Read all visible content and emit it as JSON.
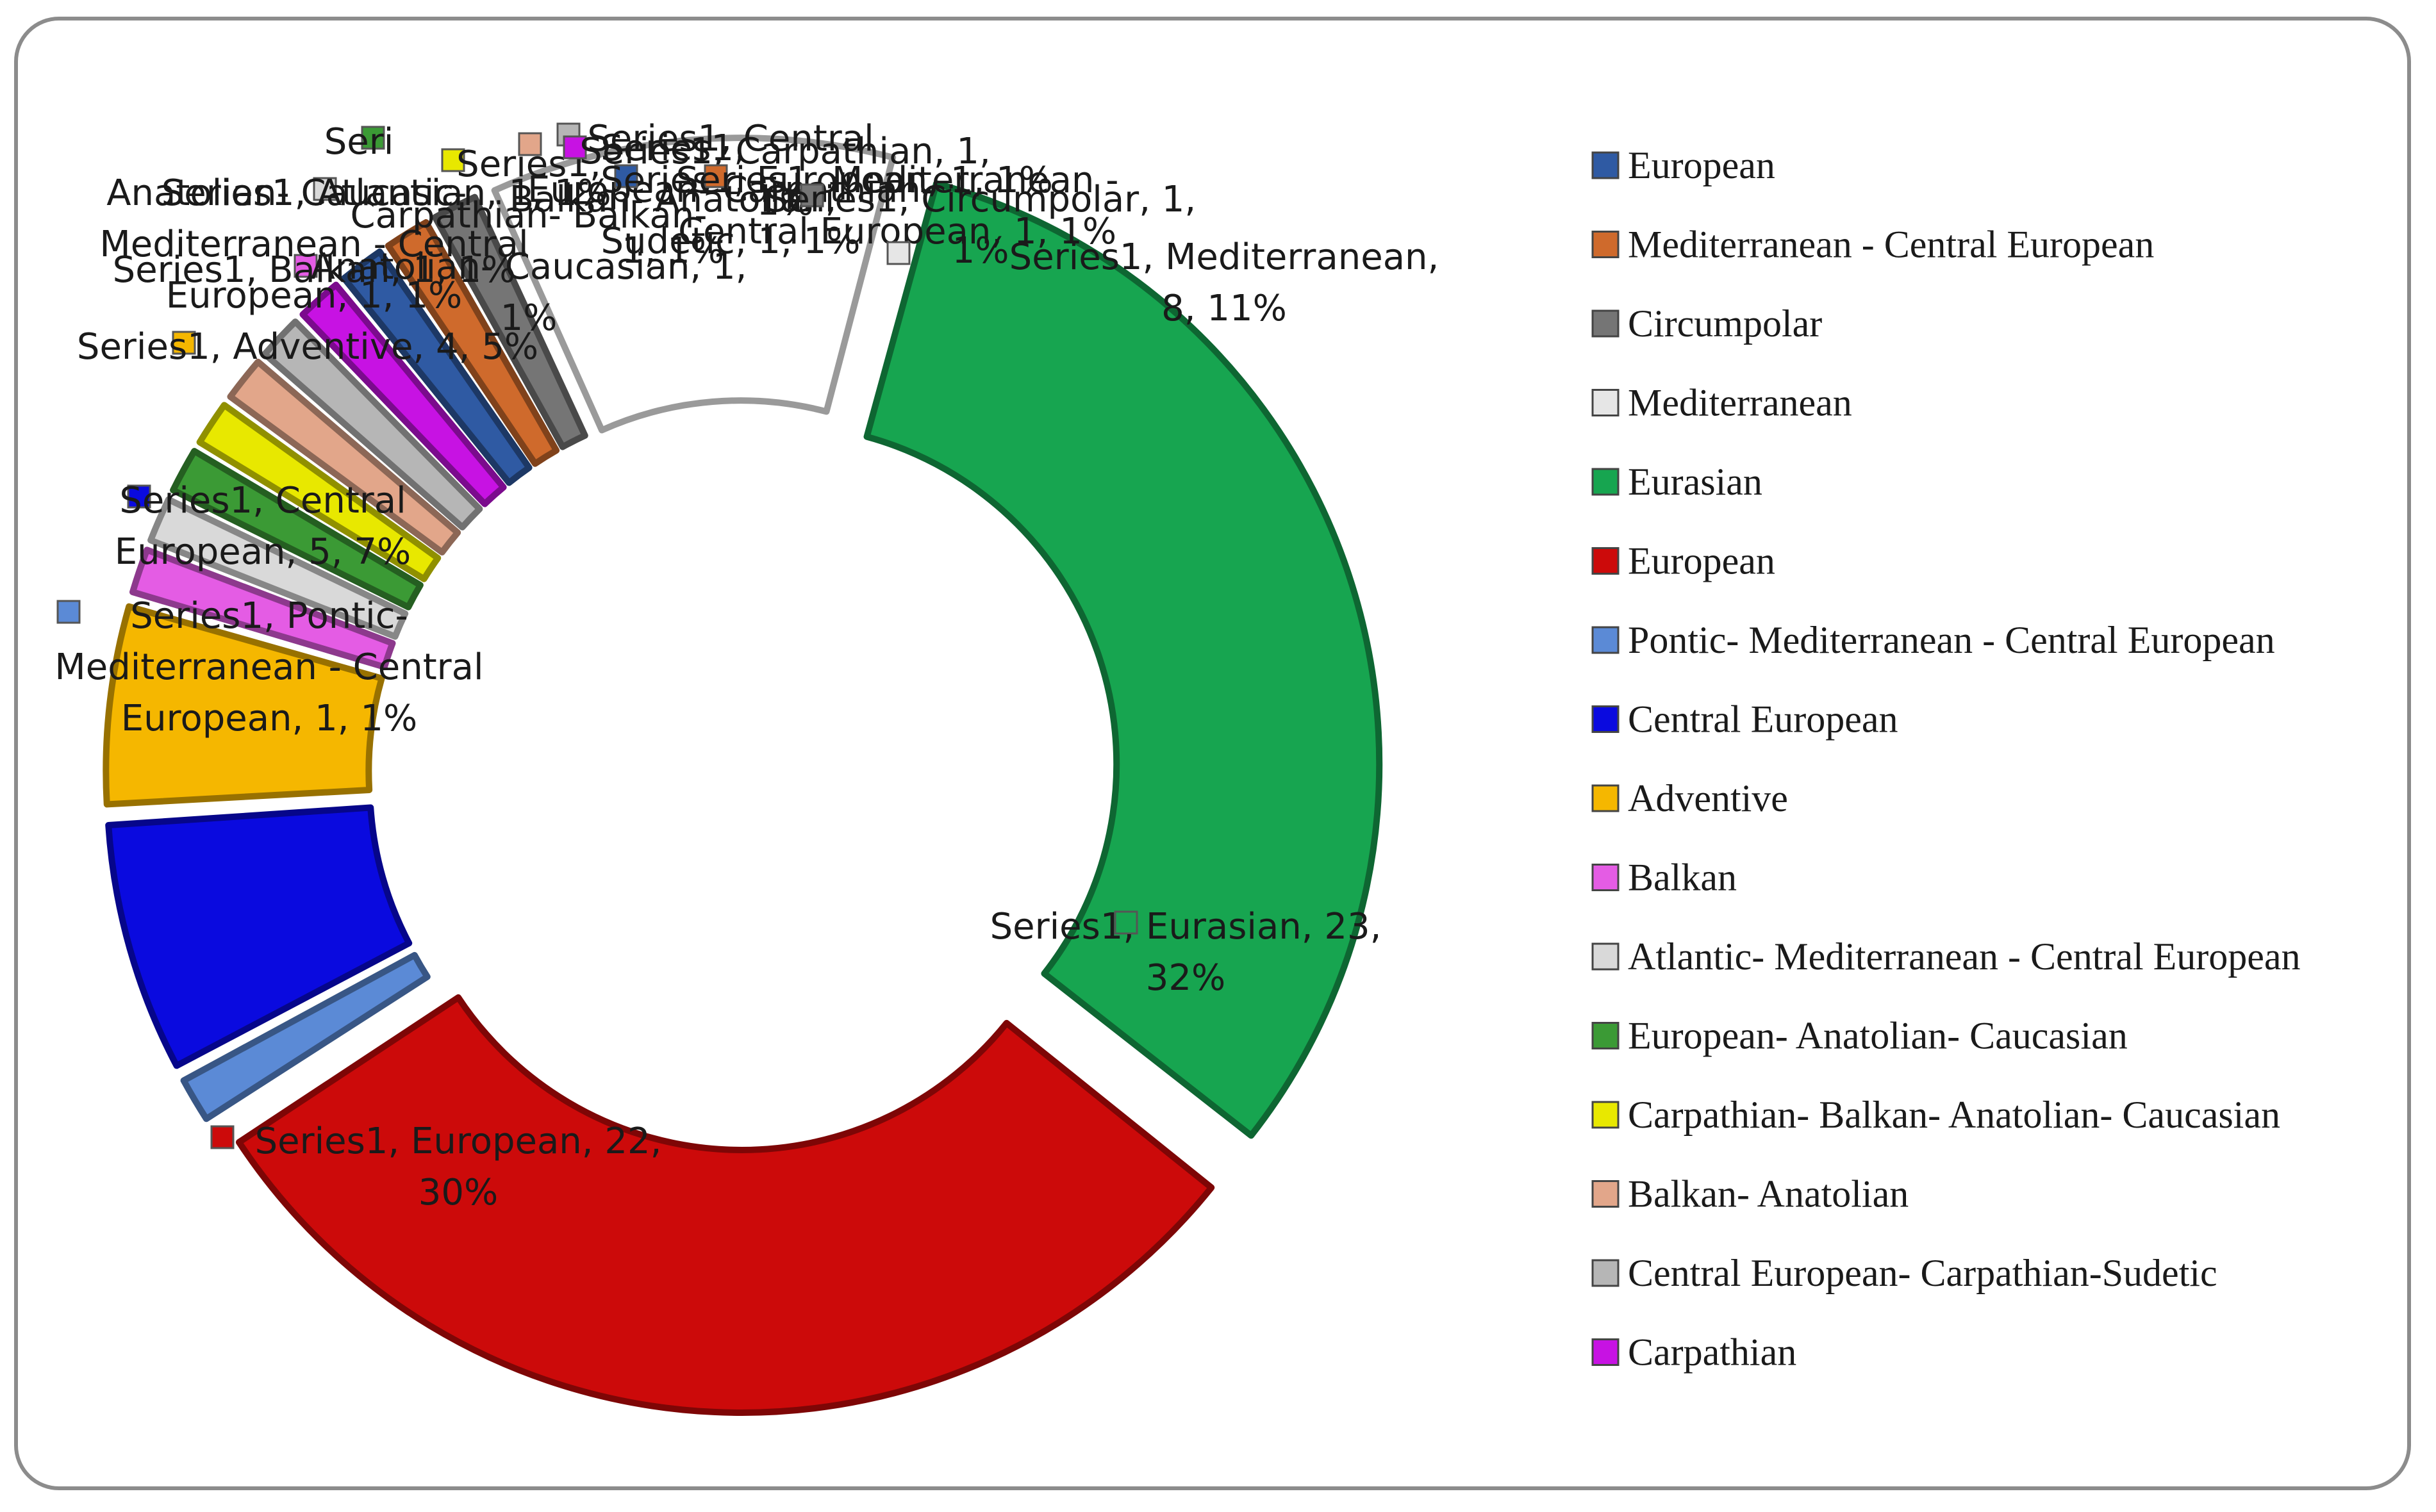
{
  "chart_data": {
    "type": "donut",
    "series_name": "Series1",
    "categories": [
      "Eurasian",
      "European",
      "Pontic- Mediterranean - Central European",
      "Central European",
      "Adventive",
      "Balkan",
      "Atlantic- Mediterranean - Central European",
      "European- Anatolian- Caucasian",
      "Carpathian- Balkan- Anatolian- Caucasian",
      "Balkan- Anatolian",
      "Central European- Carpathian-Sudetic",
      "Carpathian",
      "European",
      "Mediterranean - Central European",
      "Circumpolar",
      "Mediterranean"
    ],
    "values": [
      23,
      22,
      1,
      5,
      4,
      1,
      1,
      1,
      1,
      1,
      1,
      1,
      1,
      1,
      1,
      8
    ],
    "percent_labels": [
      "32%",
      "30%",
      "1%",
      "7%",
      "5%",
      "1%",
      "1%",
      "1%",
      "1%",
      "1%",
      "1%",
      "1%",
      "1%",
      "1%",
      "1%",
      "11%"
    ],
    "colors": [
      "#17a550",
      "#cc0a0a",
      "#5b8ad6",
      "#0a0adf",
      "#f5b700",
      "#e45ce4",
      "#d9d9d9",
      "#3b9a35",
      "#e8e800",
      "#e2a68a",
      "#b6b6b6",
      "#c712e3",
      "#2f5aa3",
      "#cf6a2c",
      "#757575",
      "#ffffff"
    ],
    "data_labels": [
      [
        "Series1, Eurasian, 23,",
        "32%"
      ],
      [
        "Series1, European, 22,",
        "30%"
      ],
      [
        "Series1, Pontic-",
        "Mediterranean - Central",
        "European, 1, 1%"
      ],
      [
        "Series1, Central",
        "European, 5, 7%"
      ],
      [
        "Series1, Adventive, 4, 5%"
      ],
      [
        "Series1, Balkan, 1, 1%"
      ],
      [
        "Series1, Atlantic-",
        "Mediterranean - Central",
        "European, 1, 1%"
      ],
      [
        "Seri",
        "Anatolian- Caucasian, 1, 1%"
      ],
      [
        "Series1,",
        "Carpathian- Balkan-",
        "Anatolian- Caucasian, 1,",
        "1%"
      ],
      [
        "Series1,",
        "Balkan- Anatolian,",
        "1, 1%"
      ],
      [
        "Series1, Central",
        "European- Carpathian-",
        "Sudetic, 1, 1%"
      ],
      [
        "Series1, Carpathian, 1,",
        "1%"
      ],
      [
        "Series1, European, 1, 1%"
      ],
      [
        "Series1, Mediterranean -",
        "Central European, 1, 1%"
      ],
      [
        "Series1, Circumpolar, 1,",
        "1%"
      ],
      [
        "Series1, Mediterranean,",
        "8, 11%"
      ]
    ],
    "legend": {
      "position": "right",
      "entries": [
        {
          "label": "European",
          "color": "#2f5aa3"
        },
        {
          "label": "Mediterranean - Central European",
          "color": "#cf6a2c"
        },
        {
          "label": "Circumpolar",
          "color": "#757575"
        },
        {
          "label": "Mediterranean",
          "color": "#e6e6e6"
        },
        {
          "label": "Eurasian",
          "color": "#17a550"
        },
        {
          "label": "European",
          "color": "#cc0a0a"
        },
        {
          "label": "Pontic- Mediterranean - Central European",
          "color": "#5b8ad6"
        },
        {
          "label": "Central European",
          "color": "#0a0adf"
        },
        {
          "label": "Adventive",
          "color": "#f5b700"
        },
        {
          "label": "Balkan",
          "color": "#e45ce4"
        },
        {
          "label": "Atlantic- Mediterranean - Central European",
          "color": "#d9d9d9"
        },
        {
          "label": "European- Anatolian- Caucasian",
          "color": "#3b9a35"
        },
        {
          "label": "Carpathian- Balkan- Anatolian- Caucasian",
          "color": "#e8e800"
        },
        {
          "label": "Balkan- Anatolian",
          "color": "#e2a68a"
        },
        {
          "label": "Central European- Carpathian-Sudetic",
          "color": "#b6b6b6"
        },
        {
          "label": "Carpathian",
          "color": "#c712e3"
        }
      ]
    }
  }
}
